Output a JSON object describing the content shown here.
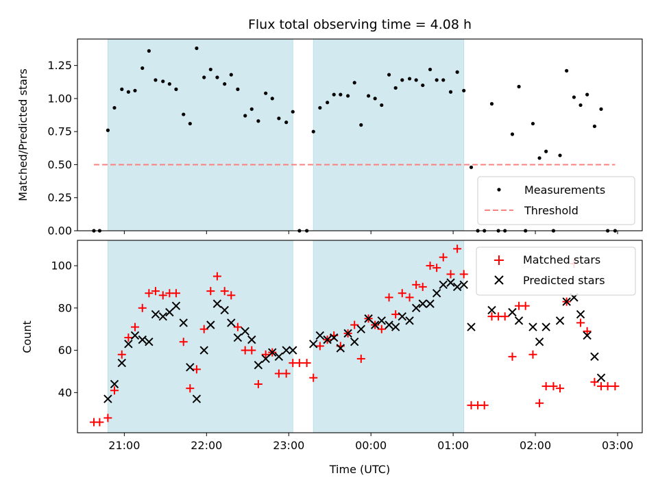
{
  "chart_data": [
    {
      "type": "scatter",
      "title": "Flux total observing time = 4.08 h",
      "xlabel": "",
      "ylabel": "Matched/Predicted stars",
      "x_unit": "hours (UTC, 24:00 = next day 00:00)",
      "xlim": [
        20.43,
        27.3
      ],
      "ylim": [
        0,
        1.45
      ],
      "yticks": [
        "0.00",
        "0.25",
        "0.50",
        "0.75",
        "1.00",
        "1.25"
      ],
      "shaded_spans": [
        [
          20.8,
          23.05
        ],
        [
          23.3,
          25.13
        ]
      ],
      "shade_color": "#d3e9f0",
      "legend": {
        "position": "lower right",
        "entries": [
          "Measurements",
          "Threshold"
        ]
      },
      "series": [
        {
          "name": "Measurements",
          "marker": "dot",
          "color": "#000000",
          "x": [
            20.63,
            20.7,
            20.8,
            20.88,
            20.97,
            21.05,
            21.13,
            21.22,
            21.3,
            21.38,
            21.47,
            21.55,
            21.63,
            21.72,
            21.8,
            21.88,
            21.97,
            22.05,
            22.13,
            22.22,
            22.3,
            22.38,
            22.47,
            22.55,
            22.63,
            22.72,
            22.8,
            22.88,
            22.97,
            23.05,
            23.13,
            23.22,
            23.3,
            23.38,
            23.47,
            23.55,
            23.63,
            23.72,
            23.8,
            23.88,
            23.97,
            24.05,
            24.13,
            24.22,
            24.3,
            24.38,
            24.47,
            24.55,
            24.63,
            24.72,
            24.8,
            24.88,
            24.97,
            25.05,
            25.13,
            25.22,
            25.3,
            25.38,
            25.47,
            25.55,
            25.63,
            25.72,
            25.8,
            25.88,
            25.97,
            26.05,
            26.13,
            26.22,
            26.3,
            26.38,
            26.47,
            26.55,
            26.63,
            26.72,
            26.8,
            26.88,
            26.97
          ],
          "y": [
            0.0,
            0.0,
            0.76,
            0.93,
            1.07,
            1.05,
            1.06,
            1.23,
            1.36,
            1.14,
            1.13,
            1.11,
            1.07,
            0.88,
            0.81,
            1.38,
            1.16,
            1.22,
            1.16,
            1.11,
            1.18,
            1.07,
            0.87,
            0.92,
            0.83,
            1.04,
            1.0,
            0.85,
            0.82,
            0.9,
            0.0,
            0.0,
            0.75,
            0.93,
            0.97,
            1.03,
            1.03,
            1.02,
            1.12,
            0.8,
            1.02,
            1.0,
            0.95,
            1.18,
            1.08,
            1.14,
            1.15,
            1.14,
            1.1,
            1.22,
            1.14,
            1.14,
            1.05,
            1.2,
            1.06,
            0.48,
            0.0,
            0.0,
            0.96,
            0.0,
            0.0,
            0.73,
            1.09,
            0.0,
            0.81,
            0.55,
            0.6,
            0.0,
            0.57,
            1.21,
            1.01,
            0.95,
            1.03,
            0.79,
            0.92,
            0.0,
            0.0
          ]
        },
        {
          "name": "Threshold",
          "style": "dashed",
          "color": "#ff7f7f",
          "x": [
            20.63,
            26.97
          ],
          "y": [
            0.5,
            0.5
          ]
        }
      ]
    },
    {
      "type": "scatter",
      "title": "",
      "xlabel": "Time (UTC)",
      "ylabel": "Count",
      "x_unit": "hours (UTC, 24:00 = next day 00:00)",
      "xlim": [
        20.43,
        27.3
      ],
      "ylim": [
        21,
        112
      ],
      "yticks": [
        "40",
        "60",
        "80",
        "100"
      ],
      "xticks": [
        {
          "value": 21,
          "label": "21:00"
        },
        {
          "value": 22,
          "label": "22:00"
        },
        {
          "value": 23,
          "label": "23:00"
        },
        {
          "value": 24,
          "label": "00:00"
        },
        {
          "value": 25,
          "label": "01:00"
        },
        {
          "value": 26,
          "label": "02:00"
        },
        {
          "value": 27,
          "label": "03:00"
        }
      ],
      "shaded_spans": [
        [
          20.8,
          23.05
        ],
        [
          23.3,
          25.13
        ]
      ],
      "shade_color": "#d3e9f0",
      "legend": {
        "position": "upper right",
        "entries": [
          "Matched stars",
          "Predicted stars"
        ]
      },
      "series": [
        {
          "name": "Matched stars",
          "marker": "plus",
          "color": "#ff0000",
          "x": [
            20.63,
            20.7,
            20.8,
            20.88,
            20.97,
            21.05,
            21.13,
            21.22,
            21.3,
            21.38,
            21.47,
            21.55,
            21.63,
            21.72,
            21.8,
            21.88,
            21.97,
            22.05,
            22.13,
            22.22,
            22.3,
            22.38,
            22.47,
            22.55,
            22.63,
            22.72,
            22.8,
            22.88,
            22.97,
            23.05,
            23.13,
            23.22,
            23.3,
            23.38,
            23.47,
            23.55,
            23.63,
            23.72,
            23.8,
            23.88,
            23.97,
            24.05,
            24.13,
            24.22,
            24.3,
            24.38,
            24.47,
            24.55,
            24.63,
            24.72,
            24.8,
            24.88,
            24.97,
            25.05,
            25.13,
            25.22,
            25.3,
            25.38,
            25.47,
            25.55,
            25.63,
            25.72,
            25.8,
            25.88,
            25.97,
            26.05,
            26.13,
            26.22,
            26.3,
            26.38,
            26.47,
            26.55,
            26.63,
            26.72,
            26.8,
            26.88,
            26.97
          ],
          "y": [
            26,
            26,
            28,
            41,
            58,
            66,
            71,
            80,
            87,
            88,
            86,
            87,
            87,
            64,
            42,
            51,
            70,
            88,
            95,
            88,
            86,
            71,
            60,
            60,
            44,
            58,
            59,
            49,
            49,
            54,
            54,
            54,
            47,
            62,
            65,
            67,
            62,
            68,
            72,
            56,
            75,
            72,
            70,
            85,
            77,
            87,
            85,
            91,
            90,
            100,
            99,
            104,
            96,
            108,
            96,
            34,
            34,
            34,
            76,
            76,
            76,
            57,
            81,
            81,
            58,
            35,
            43,
            43,
            42,
            83,
            101,
            73,
            69,
            45,
            43,
            43,
            43
          ]
        },
        {
          "name": "Predicted stars",
          "marker": "x",
          "color": "#000000",
          "x": [
            20.8,
            20.88,
            20.97,
            21.05,
            21.13,
            21.22,
            21.3,
            21.38,
            21.47,
            21.55,
            21.63,
            21.72,
            21.8,
            21.88,
            21.97,
            22.05,
            22.13,
            22.22,
            22.3,
            22.38,
            22.47,
            22.55,
            22.63,
            22.72,
            22.8,
            22.88,
            22.97,
            23.05,
            23.3,
            23.38,
            23.47,
            23.55,
            23.63,
            23.72,
            23.8,
            23.88,
            23.97,
            24.05,
            24.13,
            24.22,
            24.3,
            24.38,
            24.47,
            24.55,
            24.63,
            24.72,
            24.8,
            24.88,
            24.97,
            25.05,
            25.13,
            25.22,
            25.47,
            25.72,
            25.8,
            25.97,
            26.05,
            26.13,
            26.3,
            26.38,
            26.47,
            26.55,
            26.63,
            26.72,
            26.8
          ],
          "y": [
            37,
            44,
            54,
            63,
            67,
            65,
            64,
            77,
            76,
            78,
            81,
            73,
            52,
            37,
            60,
            72,
            82,
            79,
            73,
            66,
            69,
            65,
            53,
            56,
            59,
            57,
            60,
            60,
            63,
            67,
            65,
            66,
            61,
            68,
            64,
            70,
            75,
            72,
            74,
            72,
            71,
            76,
            74,
            80,
            82,
            82,
            87,
            91,
            92,
            90,
            91,
            71,
            79,
            78,
            74,
            71,
            64,
            71,
            74,
            83,
            85,
            77,
            67,
            57,
            47
          ]
        }
      ]
    }
  ]
}
